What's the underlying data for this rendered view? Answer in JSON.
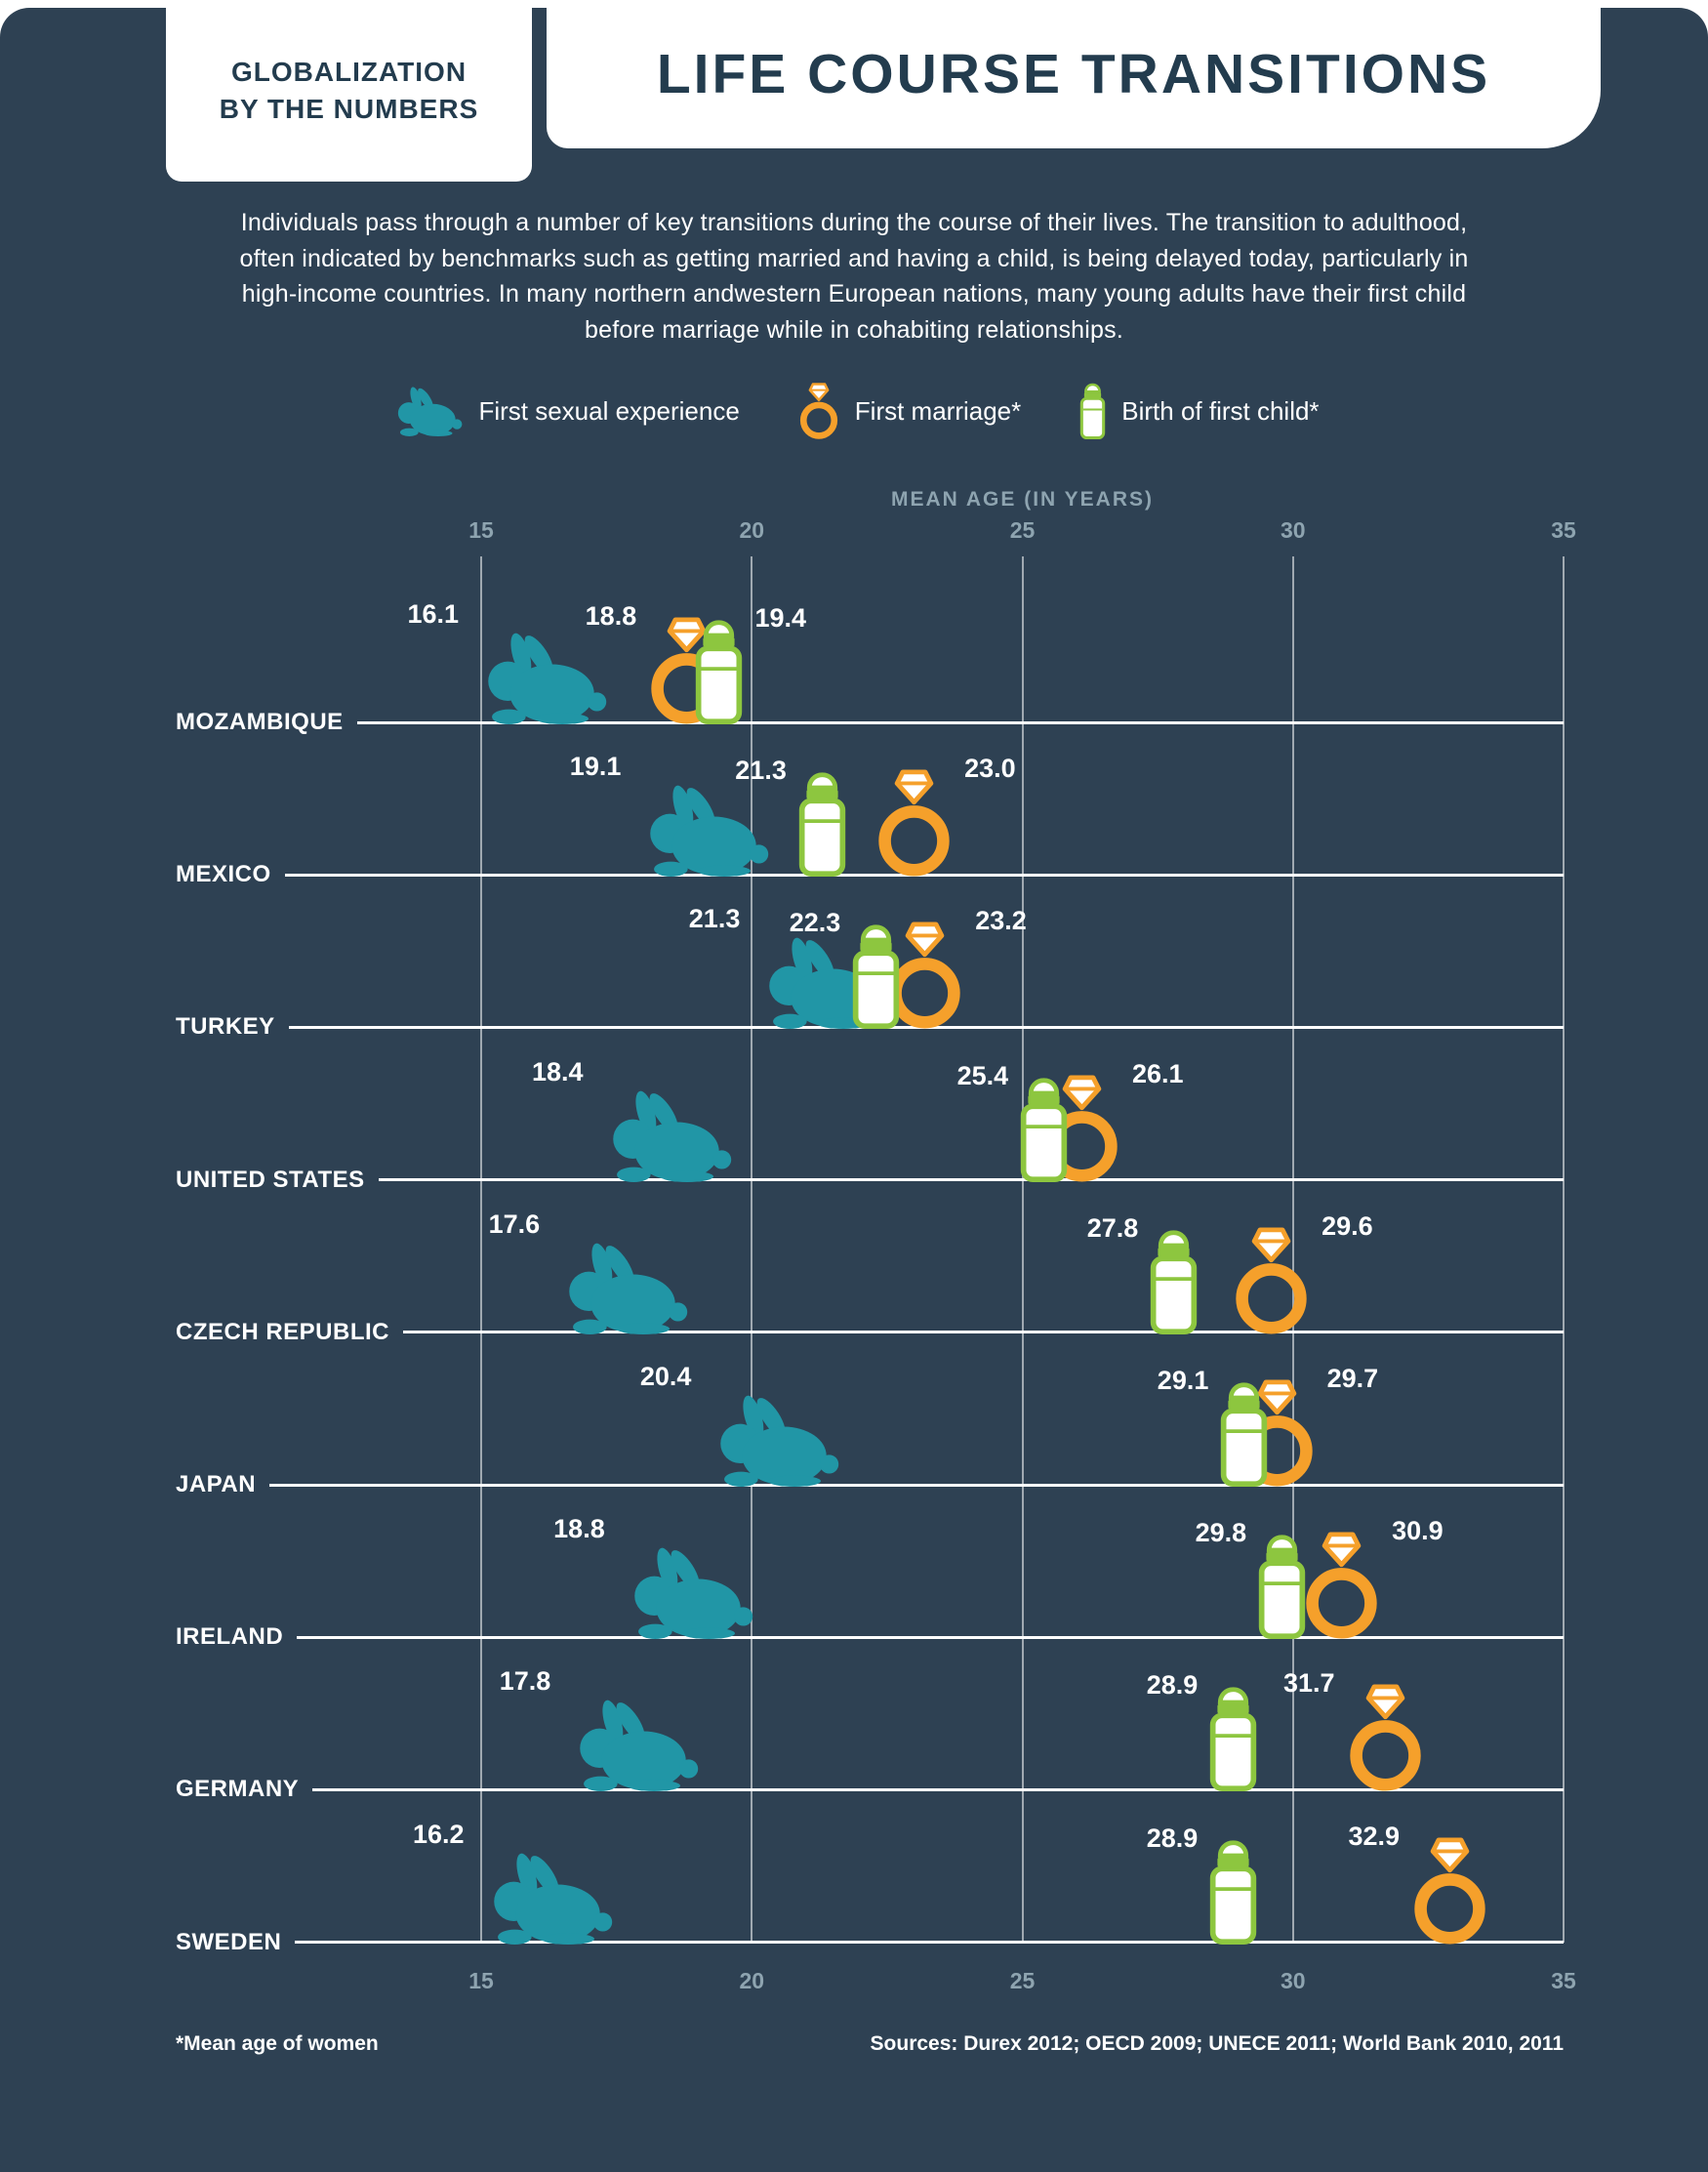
{
  "header": {
    "brand_line1": "GLOBALIZATION",
    "brand_line2": "BY THE NUMBERS",
    "title": "LIFE COURSE TRANSITIONS"
  },
  "intro": "Individuals pass through a number of key transitions during the course of their lives. The transition to adulthood, often indicated by benchmarks such as getting married and having a child, is being delayed today, particularly in high-income countries. In many northern andwestern European nations, many young adults have their first child before marriage while in cohabiting relationships.",
  "legend": {
    "items": [
      {
        "icon": "rabbit-icon",
        "label": "First sexual experience"
      },
      {
        "icon": "ring-icon",
        "label": "First marriage*"
      },
      {
        "icon": "bottle-icon",
        "label": "Birth of first child*"
      }
    ]
  },
  "chart_data": {
    "type": "scatter",
    "axis_title": "MEAN AGE (IN YEARS)",
    "xlim": [
      15,
      35
    ],
    "x_ticks": [
      "15",
      "20",
      "25",
      "30",
      "35"
    ],
    "grid": "vertical",
    "categories": [
      "MOZAMBIQUE",
      "MEXICO",
      "TURKEY",
      "UNITED STATES",
      "CZECH REPUBLIC",
      "JAPAN",
      "IRELAND",
      "GERMANY",
      "SWEDEN"
    ],
    "series": [
      {
        "name": "First sexual experience",
        "marker": "rabbit",
        "values": [
          "16.1",
          "19.1",
          "21.3",
          "18.4",
          "17.6",
          "20.4",
          "18.8",
          "17.8",
          "16.2"
        ]
      },
      {
        "name": "First marriage",
        "marker": "ring",
        "values": [
          "18.8",
          "23.0",
          "23.2",
          "26.1",
          "29.6",
          "29.7",
          "30.9",
          "31.7",
          "32.9"
        ]
      },
      {
        "name": "Birth of first child",
        "marker": "bottle",
        "values": [
          "19.4",
          "21.3",
          "22.3",
          "25.4",
          "27.8",
          "29.1",
          "29.8",
          "28.9",
          "28.9"
        ]
      }
    ]
  },
  "footer": {
    "note": "*Mean age of women",
    "sources": "Sources: Durex 2012; OECD 2009; UNECE 2011; World Bank 2010, 2011"
  },
  "colors": {
    "background": "#2E4153",
    "panel_text": "#233C4E",
    "teal": "#2196A6",
    "orange": "#F5A02B",
    "green": "#8DC63F",
    "muted": "#8EA4B0"
  }
}
